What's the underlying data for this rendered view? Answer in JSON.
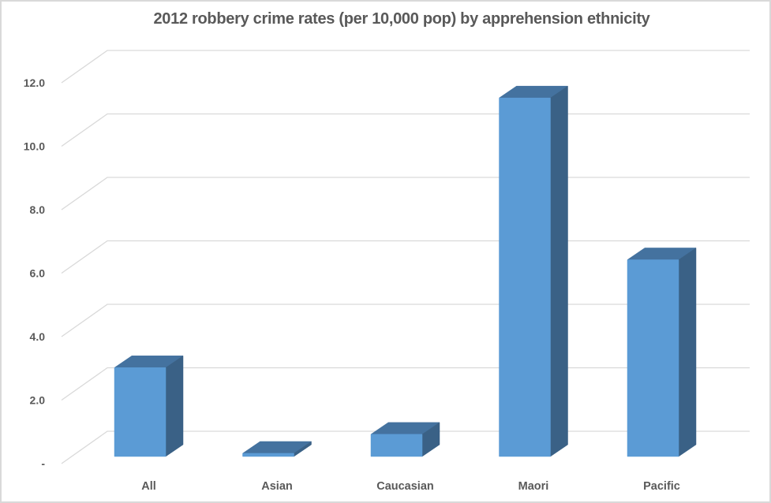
{
  "chart_data": {
    "type": "bar",
    "style": "3d-column",
    "title": "2012 robbery crime rates (per 10,000 pop) by apprehension ethnicity",
    "categories": [
      "All",
      "Asian",
      "Caucasian",
      "Maori",
      "Pacific"
    ],
    "values": [
      2.8,
      0.1,
      0.7,
      11.3,
      6.2
    ],
    "y_axis": {
      "range": [
        0,
        13
      ],
      "tick_step": 2,
      "ticks": [
        {
          "value": 0,
          "label": "-"
        },
        {
          "value": 2,
          "label": "2.0"
        },
        {
          "value": 4,
          "label": "4.0"
        },
        {
          "value": 6,
          "label": "6.0"
        },
        {
          "value": 8,
          "label": "8.0"
        },
        {
          "value": 10,
          "label": "10.0"
        },
        {
          "value": 12,
          "label": "12.0"
        }
      ]
    },
    "grid": true,
    "legend": "none",
    "colors": {
      "bar_front": "#5B9BD5",
      "bar_top": "#44729F",
      "bar_side": "#3A6186",
      "gridline": "#D9D9D9",
      "text": "#595959",
      "frame_border": "#D9D9D9",
      "background": "#FFFFFF"
    }
  }
}
